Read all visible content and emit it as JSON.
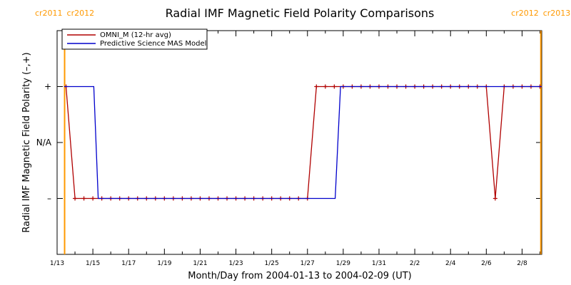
{
  "chart_data": {
    "type": "line",
    "title": "Radial IMF Magnetic Field Polarity Comparisons",
    "xlabel": "Month/Day from 2004-01-13 to 2004-02-09 (UT)",
    "ylabel": "Radial IMF Magnetic Field Polarity (–,+)",
    "x_start_date": "2004-01-13",
    "xlim": [
      0,
      27.1
    ],
    "ylim": [
      -2,
      2
    ],
    "x_ticks": [
      {
        "x": 0,
        "label": "1/13"
      },
      {
        "x": 2,
        "label": "1/15"
      },
      {
        "x": 4,
        "label": "1/17"
      },
      {
        "x": 6,
        "label": "1/19"
      },
      {
        "x": 8,
        "label": "1/21"
      },
      {
        "x": 10,
        "label": "1/23"
      },
      {
        "x": 12,
        "label": "1/25"
      },
      {
        "x": 14,
        "label": "1/27"
      },
      {
        "x": 16,
        "label": "1/29"
      },
      {
        "x": 18,
        "label": "1/31"
      },
      {
        "x": 20,
        "label": "2/2"
      },
      {
        "x": 22,
        "label": "2/4"
      },
      {
        "x": 24,
        "label": "2/6"
      },
      {
        "x": 26,
        "label": "2/8"
      }
    ],
    "y_ticks": [
      {
        "y": 1,
        "label": "+"
      },
      {
        "y": 0,
        "label": "N/A"
      },
      {
        "y": -1,
        "label": "–"
      }
    ],
    "series": [
      {
        "name": "OMNI_M (12-hr avg)",
        "color": "#b00000",
        "markers": true,
        "x": [
          0.5,
          1.0,
          1.5,
          2.0,
          2.5,
          3.0,
          3.5,
          4.0,
          4.5,
          5.0,
          5.5,
          6.0,
          6.5,
          7.0,
          7.5,
          8.0,
          8.5,
          9.0,
          9.5,
          10.0,
          10.5,
          11.0,
          11.5,
          12.0,
          12.5,
          13.0,
          13.5,
          14.0,
          14.5,
          15.0,
          15.5,
          16.0,
          16.5,
          17.0,
          17.5,
          18.0,
          18.5,
          19.0,
          19.5,
          20.0,
          20.5,
          21.0,
          21.5,
          22.0,
          22.5,
          23.0,
          23.5,
          24.0,
          24.5,
          25.0,
          25.5,
          26.0,
          26.5,
          27.0
        ],
        "y": [
          1,
          -1,
          -1,
          -1,
          -1,
          -1,
          -1,
          -1,
          -1,
          -1,
          -1,
          -1,
          -1,
          -1,
          -1,
          -1,
          -1,
          -1,
          -1,
          -1,
          -1,
          -1,
          -1,
          -1,
          -1,
          -1,
          -1,
          -1,
          1,
          1,
          1,
          1,
          1,
          1,
          1,
          1,
          1,
          1,
          1,
          1,
          1,
          1,
          1,
          1,
          1,
          1,
          1,
          1,
          -1,
          1,
          1,
          1,
          1,
          1
        ]
      },
      {
        "name": "Predictive Science MAS Model",
        "color": "#0000cc",
        "markers": false,
        "x": [
          0.4,
          2.05,
          2.3,
          15.55,
          15.85,
          27.1
        ],
        "y": [
          1,
          1,
          -1,
          -1,
          1,
          1
        ]
      }
    ],
    "carrington_markers": [
      {
        "x": 0.42,
        "label_left": "cr2011",
        "label_right": "cr2012"
      },
      {
        "x": 27.05,
        "label_left": "cr2012",
        "label_right": "cr2013"
      }
    ],
    "marker_color": "#ff9900",
    "legend_position": "top-left",
    "grid": false
  }
}
